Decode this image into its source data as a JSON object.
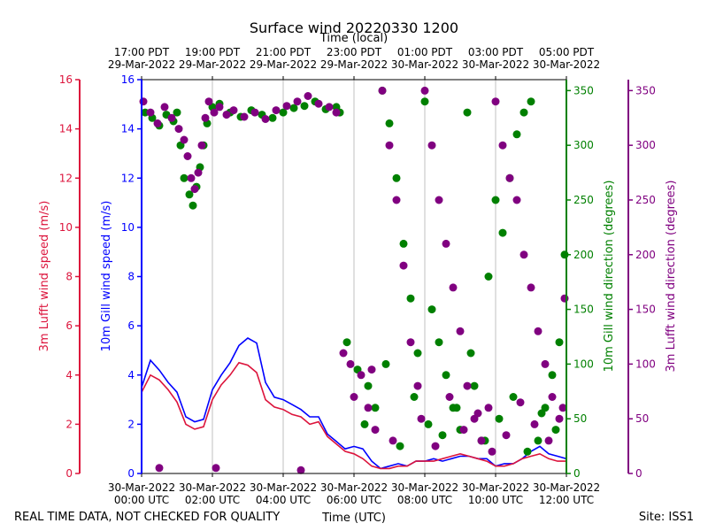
{
  "chart_data": {
    "type": "line",
    "title": "Surface wind 20220330 1200",
    "top_axis_label": "Time (local)",
    "bottom_axis_label": "Time (UTC)",
    "footer_left": "REAL TIME DATA, NOT CHECKED FOR QUALITY",
    "footer_right": "Site: ISS1",
    "x_range_hours": [
      0,
      12
    ],
    "bottom_ticks": [
      {
        "h": 0,
        "line1": "30-Mar-2022",
        "line2": "00:00 UTC"
      },
      {
        "h": 2,
        "line1": "30-Mar-2022",
        "line2": "02:00 UTC"
      },
      {
        "h": 4,
        "line1": "30-Mar-2022",
        "line2": "04:00 UTC"
      },
      {
        "h": 6,
        "line1": "30-Mar-2022",
        "line2": "06:00 UTC"
      },
      {
        "h": 8,
        "line1": "30-Mar-2022",
        "line2": "08:00 UTC"
      },
      {
        "h": 10,
        "line1": "30-Mar-2022",
        "line2": "10:00 UTC"
      },
      {
        "h": 12,
        "line1": "30-Mar-2022",
        "line2": "12:00 UTC"
      }
    ],
    "top_ticks": [
      {
        "h": 0,
        "line1": "17:00 PDT",
        "line2": "29-Mar-2022"
      },
      {
        "h": 2,
        "line1": "19:00 PDT",
        "line2": "29-Mar-2022"
      },
      {
        "h": 4,
        "line1": "21:00 PDT",
        "line2": "29-Mar-2022"
      },
      {
        "h": 6,
        "line1": "23:00 PDT",
        "line2": "29-Mar-2022"
      },
      {
        "h": 8,
        "line1": "01:00 PDT",
        "line2": "30-Mar-2022"
      },
      {
        "h": 10,
        "line1": "03:00 PDT",
        "line2": "30-Mar-2022"
      },
      {
        "h": 12,
        "line1": "05:00 PDT",
        "line2": "30-Mar-2022"
      }
    ],
    "axes": {
      "lufft_speed": {
        "label": "3m Lufft wind speed (m/s)",
        "color": "#dc143c",
        "ylim": [
          0,
          16
        ],
        "ticks": [
          0,
          2,
          4,
          6,
          8,
          10,
          12,
          14,
          16
        ]
      },
      "gill_speed": {
        "label": "10m Gill wind speed (m/s)",
        "color": "#0000ff",
        "ylim": [
          0,
          16
        ],
        "ticks": [
          0,
          2,
          4,
          6,
          8,
          10,
          12,
          14,
          16
        ]
      },
      "gill_direction": {
        "label": "10m Gill wind direction (degrees)",
        "color": "#008000",
        "ylim": [
          0,
          360
        ],
        "ticks": [
          0,
          50,
          100,
          150,
          200,
          250,
          300,
          350
        ]
      },
      "lufft_direction": {
        "label": "3m Lufft wind direction (degrees)",
        "color": "#800080",
        "ylim": [
          0,
          360
        ],
        "ticks": [
          0,
          50,
          100,
          150,
          200,
          250,
          300,
          350
        ]
      }
    },
    "series": [
      {
        "name": "10m Gill wind speed",
        "axis": "gill_speed",
        "style": "line",
        "color": "#0000ff",
        "x": [
          0,
          0.25,
          0.5,
          0.75,
          1.0,
          1.25,
          1.5,
          1.75,
          2.0,
          2.25,
          2.5,
          2.75,
          3.0,
          3.25,
          3.5,
          3.75,
          4.0,
          4.25,
          4.5,
          4.75,
          5.0,
          5.25,
          5.5,
          5.75,
          6.0,
          6.25,
          6.5,
          6.75,
          7.0,
          7.25,
          7.5,
          7.75,
          8.0,
          8.25,
          8.5,
          8.75,
          9.0,
          9.25,
          9.5,
          9.75,
          10.0,
          10.25,
          10.5,
          10.75,
          11.0,
          11.25,
          11.5,
          11.75,
          12.0
        ],
        "y": [
          3.5,
          4.6,
          4.2,
          3.7,
          3.3,
          2.3,
          2.1,
          2.2,
          3.4,
          4.0,
          4.5,
          5.2,
          5.5,
          5.3,
          3.7,
          3.1,
          3.0,
          2.8,
          2.6,
          2.3,
          2.3,
          1.6,
          1.3,
          1.0,
          1.1,
          1.0,
          0.5,
          0.2,
          0.3,
          0.4,
          0.3,
          0.5,
          0.5,
          0.6,
          0.5,
          0.6,
          0.7,
          0.7,
          0.6,
          0.6,
          0.3,
          0.4,
          0.4,
          0.6,
          0.9,
          1.1,
          0.8,
          0.7,
          0.6
        ]
      },
      {
        "name": "3m Lufft wind speed",
        "axis": "lufft_speed",
        "style": "line",
        "color": "#dc143c",
        "x": [
          0,
          0.25,
          0.5,
          0.75,
          1.0,
          1.25,
          1.5,
          1.75,
          2.0,
          2.25,
          2.5,
          2.75,
          3.0,
          3.25,
          3.5,
          3.75,
          4.0,
          4.25,
          4.5,
          4.75,
          5.0,
          5.25,
          5.5,
          5.75,
          6.0,
          6.25,
          6.5,
          6.75,
          7.0,
          7.25,
          7.5,
          7.75,
          8.0,
          8.25,
          8.5,
          8.75,
          9.0,
          9.25,
          9.5,
          9.75,
          10.0,
          10.25,
          10.5,
          10.75,
          11.0,
          11.25,
          11.5,
          11.75,
          12.0
        ],
        "y": [
          3.3,
          4.0,
          3.8,
          3.4,
          2.9,
          2.0,
          1.8,
          1.9,
          3.0,
          3.6,
          4.0,
          4.5,
          4.4,
          4.1,
          3.0,
          2.7,
          2.6,
          2.4,
          2.3,
          2.0,
          2.1,
          1.5,
          1.2,
          0.9,
          0.8,
          0.6,
          0.3,
          0.2,
          0.2,
          0.3,
          0.3,
          0.5,
          0.5,
          0.5,
          0.6,
          0.7,
          0.8,
          0.7,
          0.6,
          0.5,
          0.3,
          0.3,
          0.4,
          0.6,
          0.7,
          0.8,
          0.6,
          0.5,
          0.5
        ]
      },
      {
        "name": "10m Gill wind direction",
        "axis": "gill_direction",
        "style": "scatter",
        "color": "#008000",
        "x": [
          0.1,
          0.3,
          0.5,
          0.7,
          0.9,
          1.0,
          1.1,
          1.2,
          1.35,
          1.45,
          1.55,
          1.65,
          1.75,
          1.85,
          2.0,
          2.2,
          2.5,
          2.8,
          3.1,
          3.4,
          3.7,
          4.0,
          4.3,
          4.6,
          4.9,
          5.2,
          5.5,
          5.6,
          5.8,
          6.1,
          6.4,
          6.6,
          6.8,
          7.0,
          7.2,
          7.4,
          7.6,
          7.8,
          8.0,
          8.2,
          8.4,
          8.6,
          8.8,
          9.0,
          9.2,
          9.4,
          9.6,
          9.8,
          10.0,
          10.2,
          10.4,
          10.6,
          10.8,
          11.0,
          11.2,
          11.4,
          11.6,
          11.8,
          11.95,
          6.3,
          6.9,
          7.3,
          7.7,
          8.1,
          8.5,
          8.9,
          9.3,
          9.7,
          10.1,
          10.5,
          10.9,
          11.3,
          11.7
        ],
        "y": [
          330,
          325,
          318,
          328,
          322,
          330,
          300,
          270,
          255,
          245,
          262,
          280,
          300,
          320,
          335,
          338,
          330,
          326,
          332,
          328,
          325,
          330,
          334,
          336,
          340,
          333,
          335,
          330,
          120,
          95,
          80,
          60,
          350,
          320,
          270,
          210,
          160,
          110,
          340,
          150,
          120,
          90,
          60,
          40,
          330,
          80,
          30,
          180,
          250,
          220,
          270,
          310,
          330,
          340,
          30,
          60,
          90,
          120,
          200,
          45,
          100,
          25,
          70,
          45,
          35,
          60,
          110,
          30,
          50,
          70,
          20,
          55,
          40
        ]
      },
      {
        "name": "3m Lufft wind direction",
        "axis": "lufft_direction",
        "style": "scatter",
        "color": "#800080",
        "x": [
          0.05,
          0.25,
          0.45,
          0.65,
          0.85,
          1.05,
          1.2,
          1.3,
          1.4,
          1.5,
          1.6,
          1.7,
          1.8,
          1.9,
          2.05,
          2.2,
          2.4,
          2.6,
          2.9,
          3.2,
          3.5,
          3.8,
          4.1,
          4.4,
          4.7,
          5.0,
          5.3,
          5.5,
          5.7,
          5.9,
          6.0,
          6.2,
          6.4,
          6.6,
          6.8,
          7.0,
          7.2,
          7.4,
          7.6,
          7.8,
          8.0,
          8.2,
          8.4,
          8.6,
          8.8,
          9.0,
          9.2,
          9.4,
          9.6,
          9.8,
          10.0,
          10.2,
          10.4,
          10.6,
          10.8,
          11.0,
          11.2,
          11.4,
          11.6,
          11.8,
          11.95,
          0.5,
          2.1,
          4.5,
          6.5,
          7.1,
          7.9,
          8.3,
          8.7,
          9.1,
          9.5,
          9.9,
          10.3,
          10.7,
          11.1,
          11.5,
          11.9
        ],
        "y": [
          340,
          330,
          320,
          335,
          325,
          315,
          305,
          290,
          270,
          260,
          275,
          300,
          325,
          340,
          330,
          335,
          328,
          332,
          326,
          330,
          324,
          332,
          336,
          340,
          345,
          338,
          335,
          330,
          110,
          100,
          70,
          90,
          60,
          40,
          350,
          300,
          250,
          190,
          120,
          80,
          350,
          300,
          250,
          210,
          170,
          130,
          80,
          50,
          30,
          60,
          340,
          300,
          270,
          250,
          200,
          170,
          130,
          100,
          70,
          50,
          160,
          5,
          5,
          3,
          95,
          30,
          50,
          25,
          70,
          40,
          55,
          20,
          35,
          65,
          45,
          30,
          60
        ]
      }
    ]
  }
}
